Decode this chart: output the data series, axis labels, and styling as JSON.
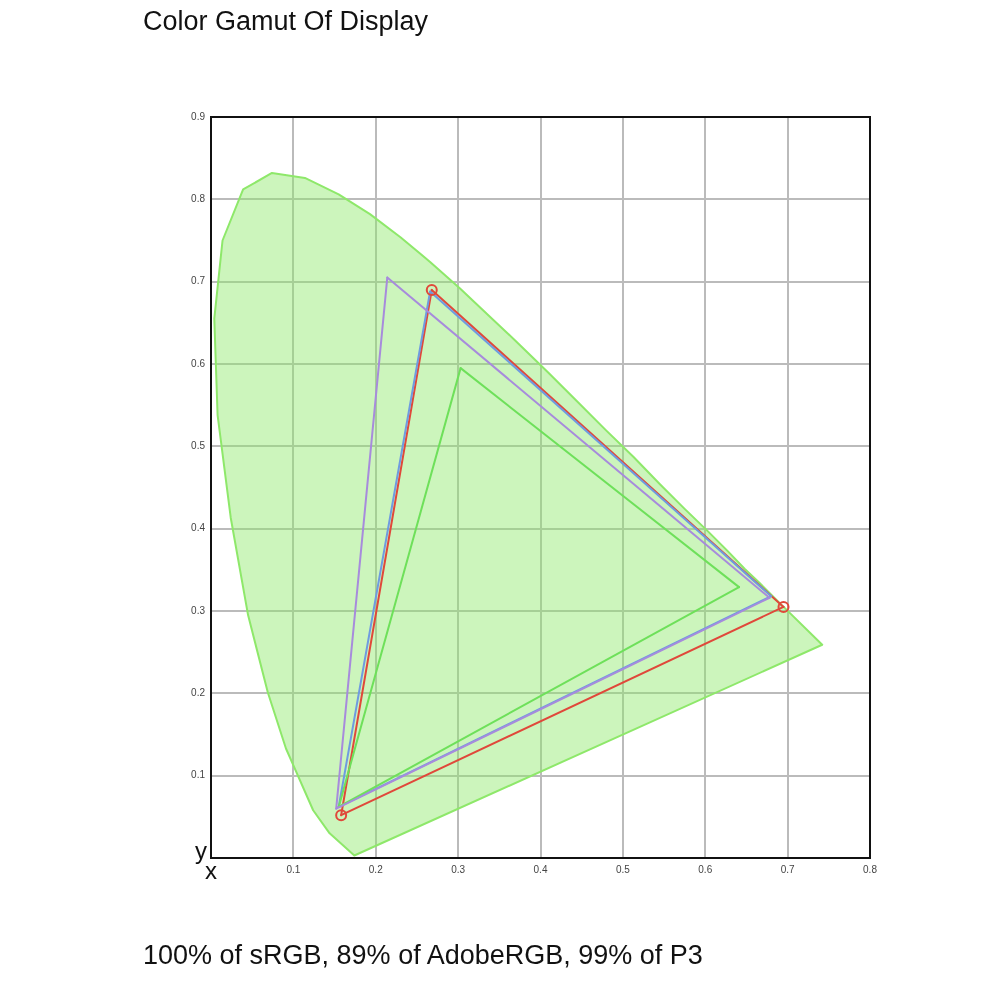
{
  "chart_data": {
    "type": "line",
    "title": "Color Gamut Of Display",
    "xlabel": "x",
    "ylabel": "y",
    "annotations": [
      "100% of sRGB, 89% of AdobeRGB, 99% of P3"
    ],
    "xlim": [
      0,
      0.8
    ],
    "ylim": [
      0,
      0.9
    ],
    "xticks": [
      0.1,
      0.2,
      0.3,
      0.4,
      0.5,
      0.6,
      0.7,
      0.8
    ],
    "yticks": [
      0.1,
      0.2,
      0.3,
      0.4,
      0.5,
      0.6,
      0.7,
      0.8,
      0.9
    ],
    "grid": true,
    "legend": false,
    "marker": "none",
    "line_style": "solid",
    "series": [
      {
        "type": "area",
        "color": "#8ee86a",
        "x": [
          0.174,
          0.144,
          0.124,
          0.091,
          0.069,
          0.045,
          0.024,
          0.008,
          0.004,
          0.014,
          0.039,
          0.074,
          0.114,
          0.155,
          0.193,
          0.23,
          0.266,
          0.302,
          0.337,
          0.373,
          0.409,
          0.444,
          0.479,
          0.513,
          0.545,
          0.575,
          0.603,
          0.627,
          0.648,
          0.666,
          0.692,
          0.742,
          0.174
        ],
        "values": [
          0.003,
          0.03,
          0.058,
          0.133,
          0.201,
          0.295,
          0.413,
          0.538,
          0.655,
          0.75,
          0.812,
          0.832,
          0.826,
          0.806,
          0.782,
          0.754,
          0.724,
          0.692,
          0.659,
          0.625,
          0.59,
          0.555,
          0.52,
          0.487,
          0.454,
          0.424,
          0.397,
          0.373,
          0.351,
          0.334,
          0.308,
          0.259,
          0.003
        ]
      },
      {
        "color": "#a78bdc",
        "x": [
          0.152,
          0.214
        ],
        "values": [
          0.06,
          0.705
        ]
      },
      {
        "color": "#a78bdc",
        "x": [
          0.214,
          0.678
        ],
        "values": [
          0.705,
          0.316
        ]
      },
      {
        "color": "#a78bdc",
        "x": [
          0.152,
          0.678
        ],
        "values": [
          0.06,
          0.316
        ]
      },
      {
        "color": "#6ee05a",
        "x": [
          0.155,
          0.303
        ],
        "values": [
          0.062,
          0.595
        ]
      },
      {
        "color": "#6ee05a",
        "x": [
          0.303,
          0.641
        ],
        "values": [
          0.595,
          0.329
        ]
      },
      {
        "color": "#6ee05a",
        "x": [
          0.155,
          0.641
        ],
        "values": [
          0.062,
          0.329
        ]
      },
      {
        "color": "#6f9be0",
        "x": [
          0.155,
          0.266
        ],
        "values": [
          0.062,
          0.688
        ]
      },
      {
        "color": "#6f9be0",
        "x": [
          0.266,
          0.68
        ],
        "values": [
          0.688,
          0.318
        ]
      },
      {
        "color": "#6f9be0",
        "x": [
          0.155,
          0.68
        ],
        "values": [
          0.062,
          0.318
        ]
      },
      {
        "color": "#e0483a",
        "x": [
          0.158,
          0.268
        ],
        "values": [
          0.052,
          0.69
        ]
      },
      {
        "color": "#e0483a",
        "x": [
          0.268,
          0.695
        ],
        "values": [
          0.69,
          0.305
        ]
      },
      {
        "color": "#e0483a",
        "x": [
          0.158,
          0.695
        ],
        "values": [
          0.052,
          0.305
        ]
      },
      {
        "type": "scatter",
        "color": "#e0483a",
        "marker": "circle",
        "x": [
          0.158,
          0.268,
          0.695
        ],
        "values": [
          0.052,
          0.69,
          0.305
        ]
      }
    ]
  }
}
